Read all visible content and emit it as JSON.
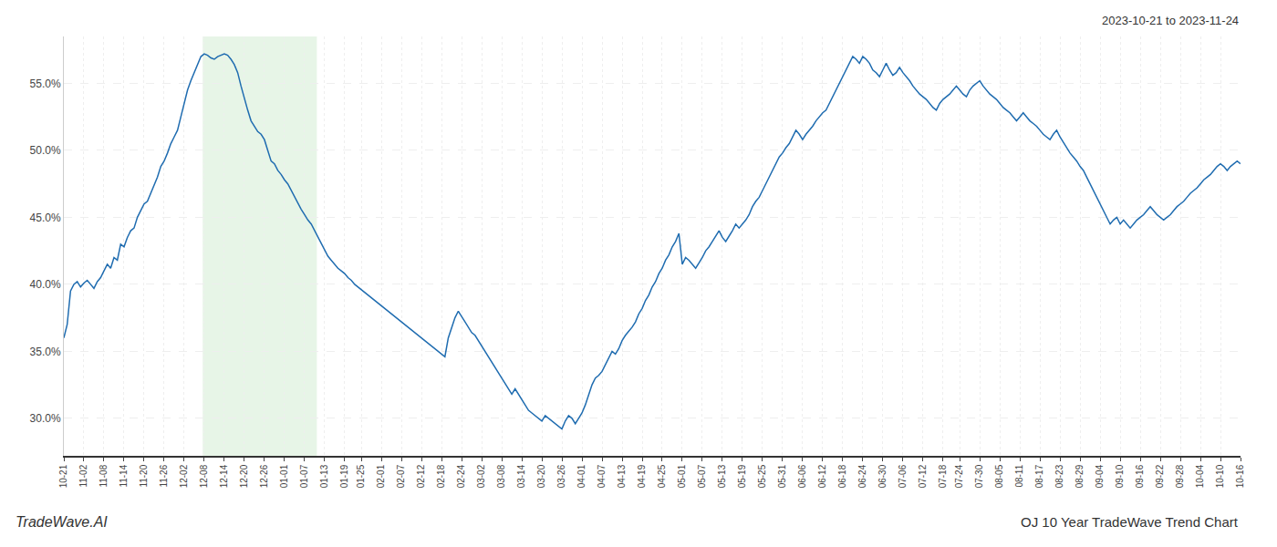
{
  "chart_data": {
    "type": "line",
    "title": "OJ 10 Year TradeWave Trend Chart",
    "subtitle": "2023-10-21 to 2023-11-24",
    "annotations": [
      "TradeWave.AI"
    ],
    "color": "#1f6cb0",
    "grid": true,
    "ylim": [
      0.272,
      0.585
    ],
    "yticks": [
      {
        "value": 0.3,
        "label": "30.0%"
      },
      {
        "value": 0.35,
        "label": "35.0%"
      },
      {
        "value": 0.4,
        "label": "40.0%"
      },
      {
        "value": 0.45,
        "label": "45.0%"
      },
      {
        "value": 0.5,
        "label": "50.0%"
      },
      {
        "value": 0.55,
        "label": "55.0%"
      }
    ],
    "categories": [
      "10-21",
      null,
      null,
      null,
      null,
      null,
      "11-02",
      null,
      null,
      null,
      null,
      null,
      "11-08",
      null,
      null,
      null,
      null,
      null,
      "11-14",
      null,
      null,
      null,
      null,
      null,
      "11-20",
      null,
      null,
      null,
      null,
      null,
      "11-26",
      null,
      null,
      null,
      null,
      null,
      "12-02",
      null,
      null,
      null,
      null,
      null,
      "12-08",
      null,
      null,
      null,
      null,
      null,
      "12-14",
      null,
      null,
      null,
      null,
      null,
      "12-20",
      null,
      null,
      null,
      null,
      null,
      "12-26",
      null,
      null,
      null,
      null,
      null,
      "01-01",
      null,
      null,
      null,
      null,
      null,
      "01-07",
      null,
      null,
      null,
      null,
      null,
      "01-13",
      null,
      null,
      null,
      null,
      null,
      "01-19",
      null,
      null,
      null,
      null,
      "01-25",
      null,
      null,
      null,
      null,
      null,
      "02-01",
      null,
      null,
      null,
      null,
      null,
      "02-07",
      null,
      null,
      null,
      null,
      null,
      "02-12",
      null,
      null,
      null,
      null,
      null,
      "02-18",
      null,
      null,
      null,
      null,
      null,
      "02-24",
      null,
      null,
      null,
      null,
      null,
      "03-02",
      null,
      null,
      null,
      null,
      null,
      "03-08",
      null,
      null,
      null,
      null,
      null,
      "03-14",
      null,
      null,
      null,
      null,
      null,
      "03-20",
      null,
      null,
      null,
      null,
      null,
      "03-26",
      null,
      null,
      null,
      null,
      null,
      "04-01",
      null,
      null,
      null,
      null,
      null,
      "04-07",
      null,
      null,
      null,
      null,
      null,
      "04-13",
      null,
      null,
      null,
      null,
      null,
      "04-19",
      null,
      null,
      null,
      null,
      null,
      "04-25",
      null,
      null,
      null,
      null,
      null,
      "05-01",
      null,
      null,
      null,
      null,
      null,
      "05-07",
      null,
      null,
      null,
      null,
      null,
      "05-13",
      null,
      null,
      null,
      null,
      null,
      "05-19",
      null,
      null,
      null,
      null,
      null,
      "05-25",
      null,
      null,
      null,
      null,
      null,
      "05-31",
      null,
      null,
      null,
      null,
      null,
      "06-06",
      null,
      null,
      null,
      null,
      null,
      "06-12",
      null,
      null,
      null,
      null,
      null,
      "06-18",
      null,
      null,
      null,
      null,
      null,
      "06-24",
      null,
      null,
      null,
      null,
      null,
      "06-30",
      null,
      null,
      null,
      null,
      null,
      "07-06",
      null,
      null,
      null,
      null,
      null,
      "07-12",
      null,
      null,
      null,
      null,
      null,
      "07-18",
      null,
      null,
      null,
      null,
      "07-24",
      null,
      null,
      null,
      null,
      null,
      "07-30",
      null,
      null,
      null,
      null,
      null,
      "08-05",
      null,
      null,
      null,
      null,
      null,
      "08-11",
      null,
      null,
      null,
      null,
      null,
      "08-17",
      null,
      null,
      null,
      null,
      null,
      "08-23",
      null,
      null,
      null,
      null,
      null,
      "08-29",
      null,
      null,
      null,
      null,
      null,
      "09-04",
      null,
      null,
      null,
      null,
      null,
      "09-10",
      null,
      null,
      null,
      null,
      null,
      "09-16",
      null,
      null,
      null,
      null,
      null,
      "09-22",
      null,
      null,
      null,
      null,
      null,
      "09-28",
      null,
      null,
      null,
      null,
      null,
      "10-04",
      null,
      null,
      null,
      null,
      null,
      "10-10",
      null,
      null,
      null,
      null,
      null,
      "10-16"
    ],
    "values": [
      0.36,
      0.37,
      0.395,
      0.4,
      0.402,
      0.398,
      0.401,
      0.403,
      0.4,
      0.397,
      0.402,
      0.405,
      0.41,
      0.415,
      0.412,
      0.42,
      0.418,
      0.43,
      0.428,
      0.435,
      0.44,
      0.442,
      0.45,
      0.455,
      0.46,
      0.462,
      0.468,
      0.475,
      0.48,
      0.488,
      0.492,
      0.498,
      0.505,
      0.51,
      0.515,
      0.525,
      0.535,
      0.545,
      0.552,
      0.558,
      0.565,
      0.57,
      0.572,
      0.571,
      0.569,
      0.568,
      0.57,
      0.571,
      0.572,
      0.571,
      0.568,
      0.564,
      0.558,
      0.548,
      0.538,
      0.53,
      0.522,
      0.518,
      0.514,
      0.512,
      0.508,
      0.5,
      0.492,
      0.49,
      0.485,
      0.482,
      0.478,
      0.475,
      0.47,
      0.465,
      0.46,
      0.456,
      0.452,
      0.448,
      0.445,
      0.44,
      0.435,
      0.43,
      0.425,
      0.421,
      0.418,
      0.415,
      0.412,
      0.41,
      0.408,
      0.405,
      0.403,
      0.4,
      0.398,
      0.396,
      0.394,
      0.392,
      0.39,
      0.388,
      0.386,
      0.384,
      0.382,
      0.38,
      0.378,
      0.376,
      0.374,
      0.372,
      0.37,
      0.368,
      0.366,
      0.364,
      0.362,
      0.36,
      0.358,
      0.356,
      0.354,
      0.352,
      0.35,
      0.348,
      0.346,
      0.36,
      0.368,
      0.375,
      0.38,
      0.376,
      0.372,
      0.368,
      0.364,
      0.362,
      0.358,
      0.354,
      0.35,
      0.346,
      0.342,
      0.338,
      0.334,
      0.33,
      0.326,
      0.322,
      0.318,
      0.322,
      0.318,
      0.314,
      0.31,
      0.306,
      0.304,
      0.302,
      0.3,
      0.298,
      0.302,
      0.3,
      0.298,
      0.296,
      0.294,
      0.292,
      0.298,
      0.302,
      0.3,
      0.296,
      0.3,
      0.304,
      0.31,
      0.318,
      0.325,
      0.33,
      0.332,
      0.335,
      0.34,
      0.345,
      0.35,
      0.348,
      0.352,
      0.358,
      0.362,
      0.365,
      0.368,
      0.372,
      0.378,
      0.382,
      0.388,
      0.392,
      0.398,
      0.402,
      0.408,
      0.412,
      0.418,
      0.422,
      0.428,
      0.432,
      0.438,
      0.415,
      0.42,
      0.418,
      0.415,
      0.412,
      0.416,
      0.42,
      0.425,
      0.428,
      0.432,
      0.436,
      0.44,
      0.435,
      0.432,
      0.436,
      0.44,
      0.445,
      0.442,
      0.445,
      0.448,
      0.452,
      0.458,
      0.462,
      0.465,
      0.47,
      0.475,
      0.48,
      0.485,
      0.49,
      0.495,
      0.498,
      0.502,
      0.505,
      0.51,
      0.515,
      0.512,
      0.508,
      0.512,
      0.515,
      0.518,
      0.522,
      0.525,
      0.528,
      0.53,
      0.535,
      0.54,
      0.545,
      0.55,
      0.555,
      0.56,
      0.565,
      0.57,
      0.568,
      0.565,
      0.57,
      0.568,
      0.565,
      0.56,
      0.558,
      0.555,
      0.56,
      0.565,
      0.56,
      0.556,
      0.558,
      0.562,
      0.558,
      0.555,
      0.552,
      0.548,
      0.545,
      0.542,
      0.54,
      0.538,
      0.535,
      0.532,
      0.53,
      0.535,
      0.538,
      0.54,
      0.542,
      0.545,
      0.548,
      0.545,
      0.542,
      0.54,
      0.545,
      0.548,
      0.55,
      0.552,
      0.548,
      0.545,
      0.542,
      0.54,
      0.538,
      0.535,
      0.532,
      0.53,
      0.528,
      0.525,
      0.522,
      0.525,
      0.528,
      0.525,
      0.522,
      0.52,
      0.518,
      0.515,
      0.512,
      0.51,
      0.508,
      0.512,
      0.515,
      0.51,
      0.506,
      0.502,
      0.498,
      0.495,
      0.492,
      0.488,
      0.485,
      0.48,
      0.475,
      0.47,
      0.465,
      0.46,
      0.455,
      0.45,
      0.445,
      0.448,
      0.45,
      0.445,
      0.448,
      0.445,
      0.442,
      0.445,
      0.448,
      0.45,
      0.452,
      0.455,
      0.458,
      0.455,
      0.452,
      0.45,
      0.448,
      0.45,
      0.452,
      0.455,
      0.458,
      0.46,
      0.462,
      0.465,
      0.468,
      0.47,
      0.472,
      0.475,
      0.478,
      0.48,
      0.482,
      0.485,
      0.488,
      0.49,
      0.488,
      0.485,
      0.488,
      0.49,
      0.492,
      0.49
    ]
  }
}
